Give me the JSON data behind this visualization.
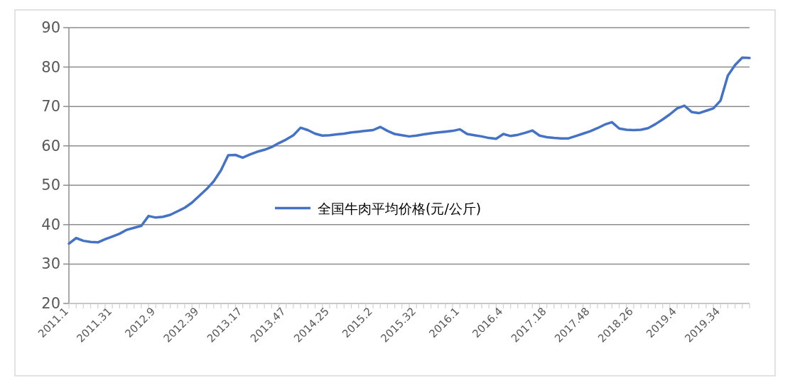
{
  "chart_data": {
    "type": "line",
    "categories": [
      "2011.1",
      null,
      null,
      null,
      null,
      null,
      "2011.31",
      null,
      null,
      null,
      null,
      null,
      "2012.9",
      null,
      null,
      null,
      null,
      null,
      "2012.39",
      null,
      null,
      null,
      null,
      null,
      "2013.17",
      null,
      null,
      null,
      null,
      null,
      "2013.47",
      null,
      null,
      null,
      null,
      null,
      "2014.25",
      null,
      null,
      null,
      null,
      null,
      "2015.2",
      null,
      null,
      null,
      null,
      null,
      "2015.32",
      null,
      null,
      null,
      null,
      null,
      "2016.1",
      null,
      null,
      null,
      null,
      null,
      "2016.4",
      null,
      null,
      null,
      null,
      null,
      "2017.18",
      null,
      null,
      null,
      null,
      null,
      "2017.48",
      null,
      null,
      null,
      null,
      null,
      "2018.26",
      null,
      null,
      null,
      null,
      null,
      "2019.4",
      null,
      null,
      null,
      null,
      null,
      "2019.34",
      null,
      null,
      null,
      null
    ],
    "series": [
      {
        "name": "全国牛肉平均价格(元/公斤)",
        "color": "#4472c4",
        "values": [
          35.2,
          36.6,
          35.9,
          35.6,
          35.5,
          36.3,
          37.0,
          37.7,
          38.7,
          39.2,
          39.7,
          42.2,
          41.8,
          42.0,
          42.5,
          43.4,
          44.3,
          45.6,
          47.3,
          49.0,
          51.0,
          53.8,
          57.6,
          57.7,
          57.0,
          57.8,
          58.5,
          59.0,
          59.7,
          60.7,
          61.6,
          62.7,
          64.6,
          64.0,
          63.1,
          62.6,
          62.7,
          62.9,
          63.1,
          63.4,
          63.6,
          63.8,
          64.0,
          64.8,
          63.8,
          63.0,
          62.7,
          62.4,
          62.6,
          62.9,
          63.2,
          63.4,
          63.6,
          63.8,
          64.2,
          63.0,
          62.7,
          62.4,
          62.0,
          61.8,
          63.0,
          62.5,
          62.8,
          63.3,
          63.9,
          62.6,
          62.2,
          62.0,
          61.9,
          61.9,
          62.5,
          63.1,
          63.7,
          64.5,
          65.4,
          66.0,
          64.4,
          64.1,
          64.0,
          64.1,
          64.5,
          65.5,
          66.7,
          68.0,
          69.5,
          70.2,
          68.6,
          68.3,
          68.9,
          69.5,
          71.5,
          77.8,
          80.5,
          82.4,
          82.3
        ]
      }
    ],
    "ylim": [
      20,
      90
    ],
    "yticks": [
      20,
      30,
      40,
      50,
      60,
      70,
      80,
      90
    ],
    "grid": "y",
    "legend": "center"
  }
}
